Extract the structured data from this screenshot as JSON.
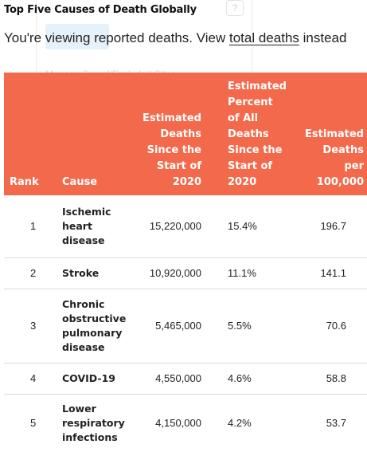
{
  "page": {
    "title": "Top Five Causes of Death Globally",
    "subtitle_prefix": "You're viewing reported deaths. View",
    "subtitle_link": "total deaths",
    "subtitle_suffix": "instead"
  },
  "overlay": {
    "help_glyph": "?",
    "manage_label": "Manage Saved/Excluded Sites"
  },
  "table": {
    "headers": {
      "rank": "Rank",
      "cause": "Cause",
      "deaths": [
        "Estimated",
        "Deaths",
        "Since the",
        "Start of",
        "2020"
      ],
      "percent": [
        "Estimated",
        "Percent",
        "of All",
        "Deaths",
        "Since the",
        "Start of",
        "2020"
      ],
      "per100k": [
        "Estimated",
        "Deaths",
        "per",
        "100,000"
      ]
    },
    "rows": [
      {
        "rank": "1",
        "cause": [
          "Ischemic",
          "heart",
          "disease"
        ],
        "deaths": "15,220,000",
        "percent": "15.4%",
        "per100k": "196.7"
      },
      {
        "rank": "2",
        "cause": [
          "Stroke"
        ],
        "deaths": "10,920,000",
        "percent": "11.1%",
        "per100k": "141.1"
      },
      {
        "rank": "3",
        "cause": [
          "Chronic",
          "obstructive",
          "pulmonary",
          "disease"
        ],
        "deaths": "5,465,000",
        "percent": "5.5%",
        "per100k": "70.6"
      },
      {
        "rank": "4",
        "cause": [
          "COVID-19"
        ],
        "deaths": "4,550,000",
        "percent": "4.6%",
        "per100k": "58.8"
      },
      {
        "rank": "5",
        "cause": [
          "Lower",
          "respiratory",
          "infections"
        ],
        "deaths": "4,150,000",
        "percent": "4.2%",
        "per100k": "53.7"
      }
    ]
  },
  "colors": {
    "header_bg": "#f26a4b",
    "header_text": "#ffffff"
  }
}
